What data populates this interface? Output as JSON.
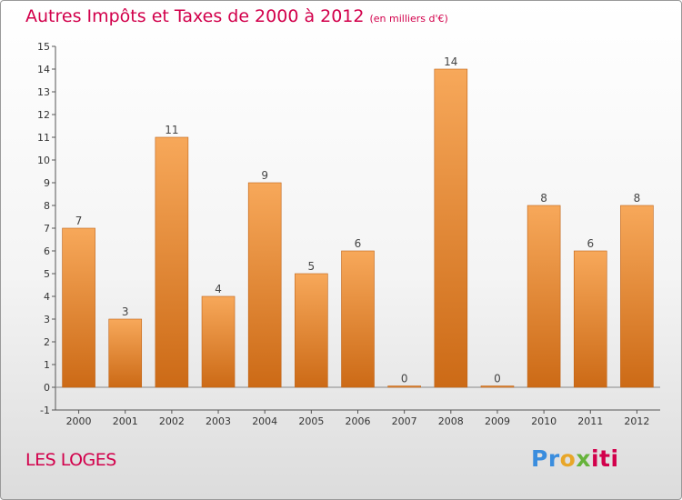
{
  "title": "Autres Impôts et Taxes de 2000 à 2012",
  "unit": "(en milliers d'€)",
  "location": "LES LOGES",
  "logo": {
    "parts": [
      "Pr",
      "o",
      "x",
      "iti"
    ]
  },
  "colors": {
    "title": "#d2004b",
    "bar_light": "#f7a85a",
    "bar_dark": "#cc6a16"
  },
  "chart_data": {
    "type": "bar",
    "title": "Autres Impôts et Taxes de 2000 à 2012",
    "subtitle": "(en milliers d'€)",
    "categories": [
      "2000",
      "2001",
      "2002",
      "2003",
      "2004",
      "2005",
      "2006",
      "2007",
      "2008",
      "2009",
      "2010",
      "2011",
      "2012"
    ],
    "values": [
      7,
      3,
      11,
      4,
      9,
      5,
      6,
      0,
      14,
      0,
      8,
      6,
      8
    ],
    "ylim": [
      -1,
      15
    ],
    "yticks": [
      "-1",
      "0",
      "1",
      "2",
      "3",
      "4",
      "5",
      "6",
      "7",
      "8",
      "9",
      "10",
      "11",
      "12",
      "13",
      "14",
      "15"
    ],
    "grid": false,
    "xlabel": "",
    "ylabel": ""
  }
}
